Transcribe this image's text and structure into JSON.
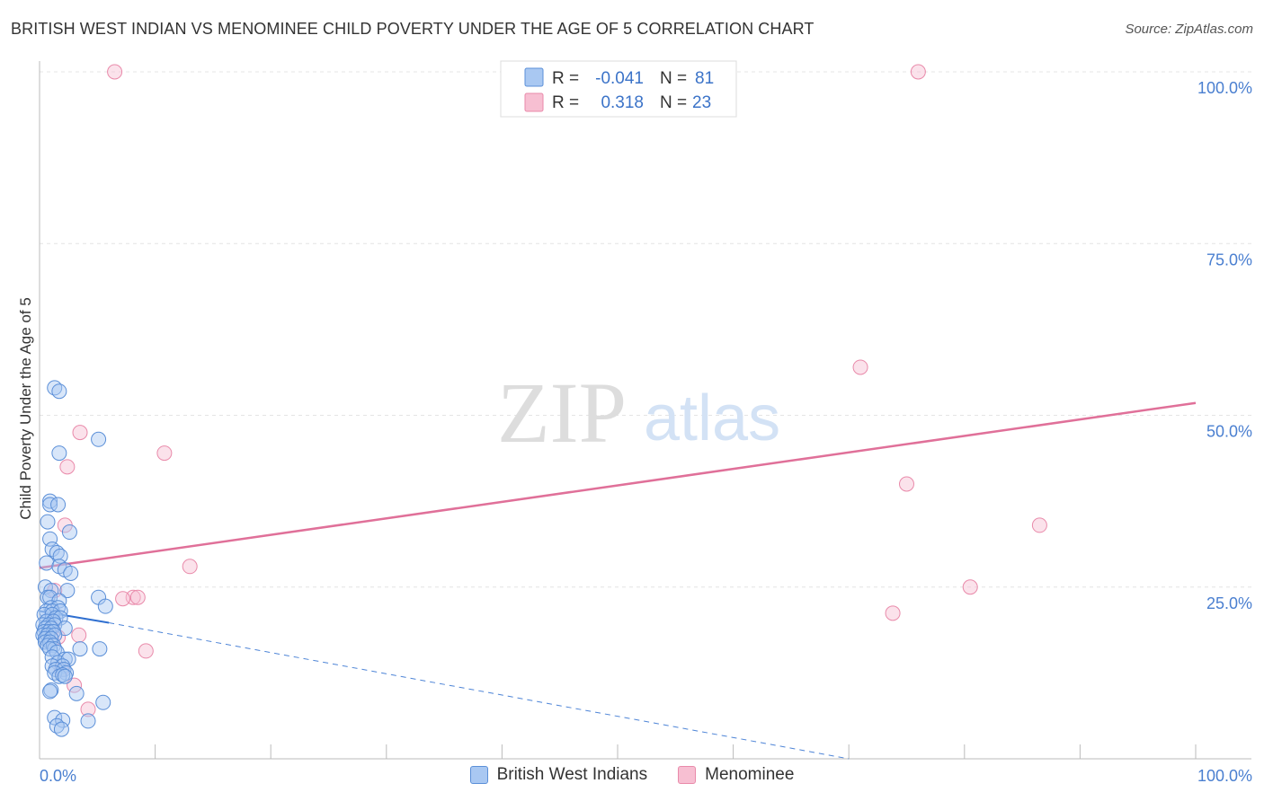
{
  "title": "BRITISH WEST INDIAN VS MENOMINEE CHILD POVERTY UNDER THE AGE OF 5 CORRELATION CHART",
  "source": "Source: ZipAtlas.com",
  "watermark": {
    "part1": "ZIP",
    "part2": "atlas"
  },
  "colors": {
    "blue_fill": "#a9c8f2",
    "blue_stroke": "#5b8fd8",
    "blue_line": "#2f6fd0",
    "pink_fill": "#f7bfd2",
    "pink_stroke": "#e98aaa",
    "pink_line": "#e07099",
    "tick": "#4a7fd0",
    "grid": "#e4e4e4"
  },
  "stats": [
    {
      "series": "British West Indians",
      "r_label": "R =",
      "r_value": "-0.041",
      "n_label": "N =",
      "n_value": "81"
    },
    {
      "series": "Menominee",
      "r_label": "R =",
      "r_value": "0.318",
      "n_label": "N =",
      "n_value": "23"
    }
  ],
  "chart_data": {
    "type": "scatter",
    "title": "BRITISH WEST INDIAN VS MENOMINEE CHILD POVERTY UNDER THE AGE OF 5 CORRELATION CHART",
    "xlabel": "",
    "ylabel": "Child Poverty Under the Age of 5",
    "xlim": [
      0,
      100
    ],
    "ylim": [
      0,
      100
    ],
    "x_tick_labels": [
      "0.0%",
      "100.0%"
    ],
    "y_ticks": [
      25,
      50,
      75,
      100
    ],
    "y_tick_labels": [
      "25.0%",
      "50.0%",
      "75.0%",
      "100.0%"
    ],
    "legend": [
      "British West Indians",
      "Menominee"
    ],
    "series": [
      {
        "name": "British West Indians",
        "points": [
          [
            1.3,
            54
          ],
          [
            1.7,
            53.5
          ],
          [
            1.7,
            44.5
          ],
          [
            5.1,
            46.5
          ],
          [
            0.9,
            37.5
          ],
          [
            0.9,
            37
          ],
          [
            1.6,
            37
          ],
          [
            0.7,
            34.5
          ],
          [
            2.6,
            33
          ],
          [
            0.9,
            32
          ],
          [
            1.1,
            30.5
          ],
          [
            1.5,
            30
          ],
          [
            1.8,
            29.5
          ],
          [
            0.6,
            28.5
          ],
          [
            1.7,
            28
          ],
          [
            2.2,
            27.5
          ],
          [
            2.7,
            27
          ],
          [
            0.5,
            25
          ],
          [
            1,
            24.5
          ],
          [
            2.4,
            24.5
          ],
          [
            5.1,
            23.5
          ],
          [
            0.7,
            23.5
          ],
          [
            0.9,
            23.5
          ],
          [
            1.7,
            23
          ],
          [
            1,
            22
          ],
          [
            1.6,
            22
          ],
          [
            0.6,
            21.5
          ],
          [
            1.1,
            21.5
          ],
          [
            1.8,
            21.5
          ],
          [
            0.4,
            21
          ],
          [
            1.1,
            21
          ],
          [
            1.4,
            20.5
          ],
          [
            1.8,
            20.5
          ],
          [
            5.7,
            22.2
          ],
          [
            0.6,
            20
          ],
          [
            1.2,
            20
          ],
          [
            0.3,
            19.5
          ],
          [
            0.8,
            19.5
          ],
          [
            1.3,
            19.5
          ],
          [
            2.2,
            19
          ],
          [
            0.5,
            19
          ],
          [
            1,
            19
          ],
          [
            0.4,
            18.5
          ],
          [
            0.8,
            18.5
          ],
          [
            1.2,
            18.5
          ],
          [
            0.3,
            18
          ],
          [
            0.7,
            18
          ],
          [
            1.3,
            18
          ],
          [
            0.5,
            17.5
          ],
          [
            1,
            17.5
          ],
          [
            0.5,
            17
          ],
          [
            0.9,
            17
          ],
          [
            0.7,
            16.5
          ],
          [
            1.2,
            16.5
          ],
          [
            1.3,
            16
          ],
          [
            0.9,
            16
          ],
          [
            3.5,
            16
          ],
          [
            5.2,
            16
          ],
          [
            1.5,
            15.5
          ],
          [
            1.1,
            14.8
          ],
          [
            2.2,
            14.5
          ],
          [
            1.6,
            14
          ],
          [
            2.5,
            14.5
          ],
          [
            1.1,
            13.5
          ],
          [
            2,
            13.5
          ],
          [
            1.4,
            13
          ],
          [
            2.1,
            13
          ],
          [
            2.3,
            12.5
          ],
          [
            1.3,
            12.5
          ],
          [
            1.7,
            12
          ],
          [
            2,
            12.2
          ],
          [
            2.2,
            12
          ],
          [
            1,
            10
          ],
          [
            0.9,
            9.8
          ],
          [
            3.2,
            9.5
          ],
          [
            5.5,
            8.2
          ],
          [
            1.3,
            6
          ],
          [
            2,
            5.6
          ],
          [
            4.2,
            5.5
          ],
          [
            1.5,
            4.8
          ],
          [
            1.9,
            4.3
          ]
        ],
        "trend": {
          "x": [
            0,
            6
          ],
          "y": [
            21.5,
            19.8
          ],
          "dashed_extension": {
            "x": [
              6,
              70
            ],
            "y": [
              19.8,
              0
            ]
          }
        }
      },
      {
        "name": "Menominee",
        "points": [
          [
            6.5,
            100
          ],
          [
            76,
            100
          ],
          [
            71,
            57
          ],
          [
            3.5,
            47.5
          ],
          [
            10.8,
            44.5
          ],
          [
            2.4,
            42.5
          ],
          [
            75,
            40
          ],
          [
            86.5,
            34
          ],
          [
            2.2,
            34
          ],
          [
            13,
            28
          ],
          [
            80.5,
            25
          ],
          [
            1.3,
            24.5
          ],
          [
            8.1,
            23.5
          ],
          [
            8.5,
            23.5
          ],
          [
            7.2,
            23.3
          ],
          [
            73.8,
            21.2
          ],
          [
            3.4,
            18
          ],
          [
            9.2,
            15.7
          ],
          [
            1.9,
            13
          ],
          [
            3,
            10.7
          ],
          [
            4.2,
            7.2
          ],
          [
            1.1,
            19
          ],
          [
            1.6,
            17.7
          ]
        ],
        "trend": {
          "x": [
            0,
            100
          ],
          "y": [
            27.8,
            51.8
          ]
        }
      }
    ]
  }
}
